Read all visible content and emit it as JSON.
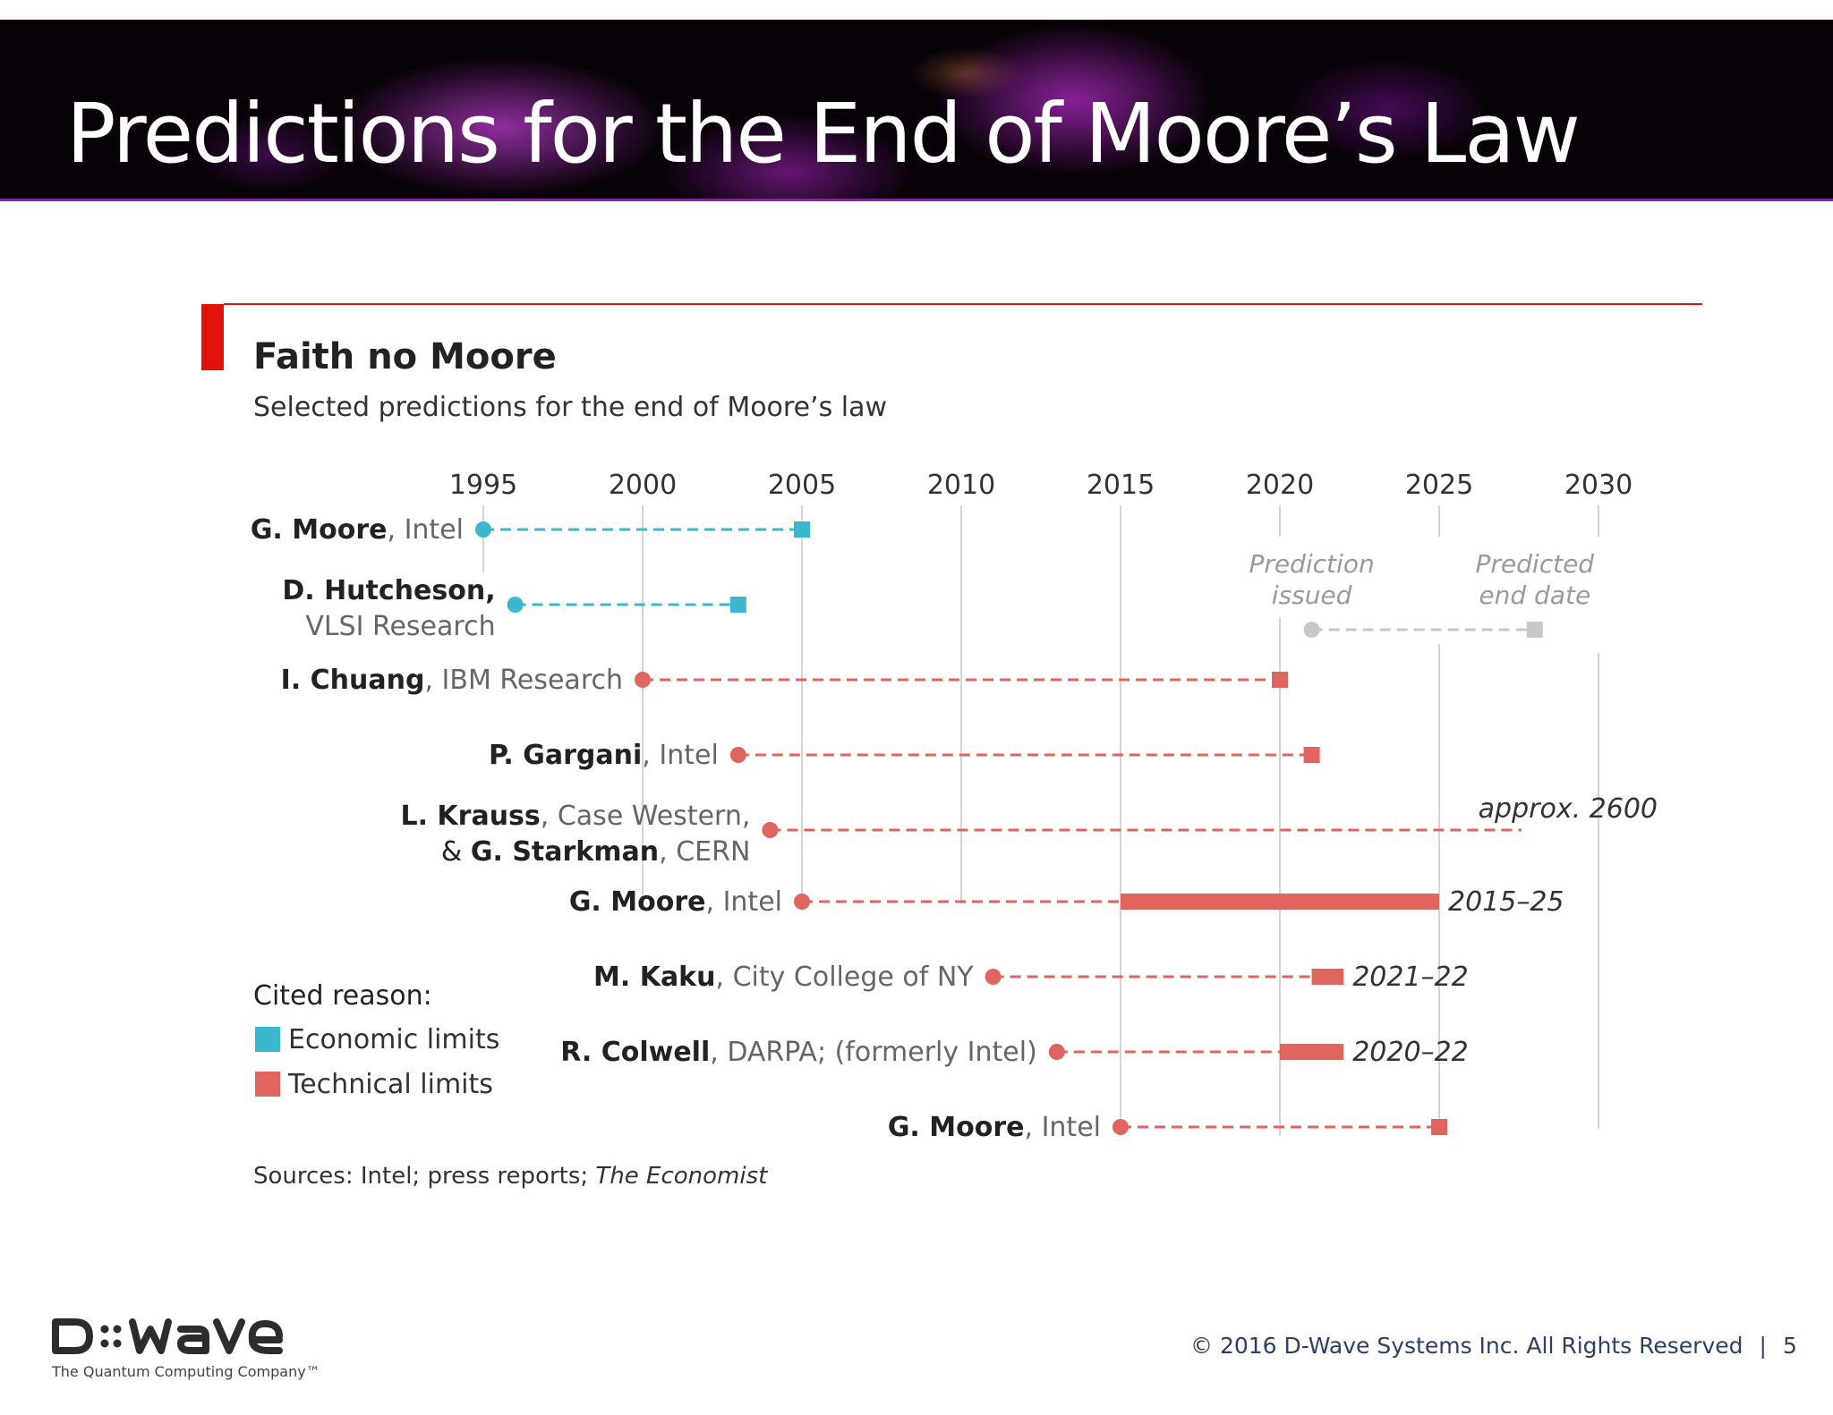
{
  "slide": {
    "title": "Predictions for the End of Moore’s Law",
    "footer": "© 2016 D-Wave Systems Inc. All Rights Reserved",
    "footer_separator": "|",
    "page_number": "5",
    "logo_text": "D::wave",
    "logo_tagline": "The Quantum Computing Company™"
  },
  "chart_data": {
    "type": "timeline",
    "title": "Faith no Moore",
    "subtitle": "Selected predictions for the end of Moore’s law",
    "x_ticks": [
      1995,
      2000,
      2005,
      2010,
      2015,
      2020,
      2025,
      2030
    ],
    "xlim": [
      1995,
      2030
    ],
    "key": {
      "issued_label": "Prediction issued",
      "end_label": "Predicted end date",
      "issued": 2021,
      "end": 2028
    },
    "legend": {
      "title": "Cited reason:",
      "entries": [
        {
          "key": "economic",
          "label": "Economic limits",
          "color": "#3bb8cf"
        },
        {
          "key": "technical",
          "label": "Technical limits",
          "color": "#e0655f"
        }
      ]
    },
    "key_color": "#c8c8c8",
    "series": [
      {
        "name": "G. Moore",
        "affiliation": ", Intel",
        "affiliation2": "",
        "reason": "economic",
        "issued": 1995,
        "end": 2005,
        "end_range": null,
        "end_label": ""
      },
      {
        "name": "D. Hutcheson,",
        "affiliation": "",
        "affiliation2": "VLSI Research",
        "reason": "economic",
        "issued": 1996,
        "end": 2003,
        "end_range": null,
        "end_label": ""
      },
      {
        "name": "I. Chuang",
        "affiliation": ", IBM Research",
        "affiliation2": "",
        "reason": "technical",
        "issued": 2000,
        "end": 2020,
        "end_range": null,
        "end_label": ""
      },
      {
        "name": "P. Gargani",
        "affiliation": ", Intel",
        "affiliation2": "",
        "reason": "technical",
        "issued": 2003,
        "end": 2021,
        "end_range": null,
        "end_label": ""
      },
      {
        "name": "L. Krauss",
        "affiliation": ", Case Western,",
        "affiliation2": "& G. Starkman, CERN",
        "reason": "technical",
        "issued": 2004,
        "end": 2600,
        "end_range": null,
        "end_label": "approx. 2600"
      },
      {
        "name": "G. Moore",
        "affiliation": ", Intel",
        "affiliation2": "",
        "reason": "technical",
        "issued": 2005,
        "end": null,
        "end_range": [
          2015,
          2025
        ],
        "end_label": "2015–25"
      },
      {
        "name": "M. Kaku",
        "affiliation": ", City College of NY",
        "affiliation2": "",
        "reason": "technical",
        "issued": 2011,
        "end": null,
        "end_range": [
          2021,
          2022
        ],
        "end_label": "2021–22"
      },
      {
        "name": "R. Colwell",
        "affiliation": ", DARPA; (formerly Intel)",
        "affiliation2": "",
        "reason": "technical",
        "issued": 2013,
        "end": null,
        "end_range": [
          2020,
          2022
        ],
        "end_label": "2020–22"
      },
      {
        "name": "G. Moore",
        "affiliation": ", Intel",
        "affiliation2": "",
        "reason": "technical",
        "issued": 2015,
        "end": 2025,
        "end_range": null,
        "end_label": ""
      }
    ],
    "source_prefix": "Sources: Intel; press reports; ",
    "source_italic": "The Economist",
    "grid": true,
    "accent_color": "#e3120b"
  }
}
